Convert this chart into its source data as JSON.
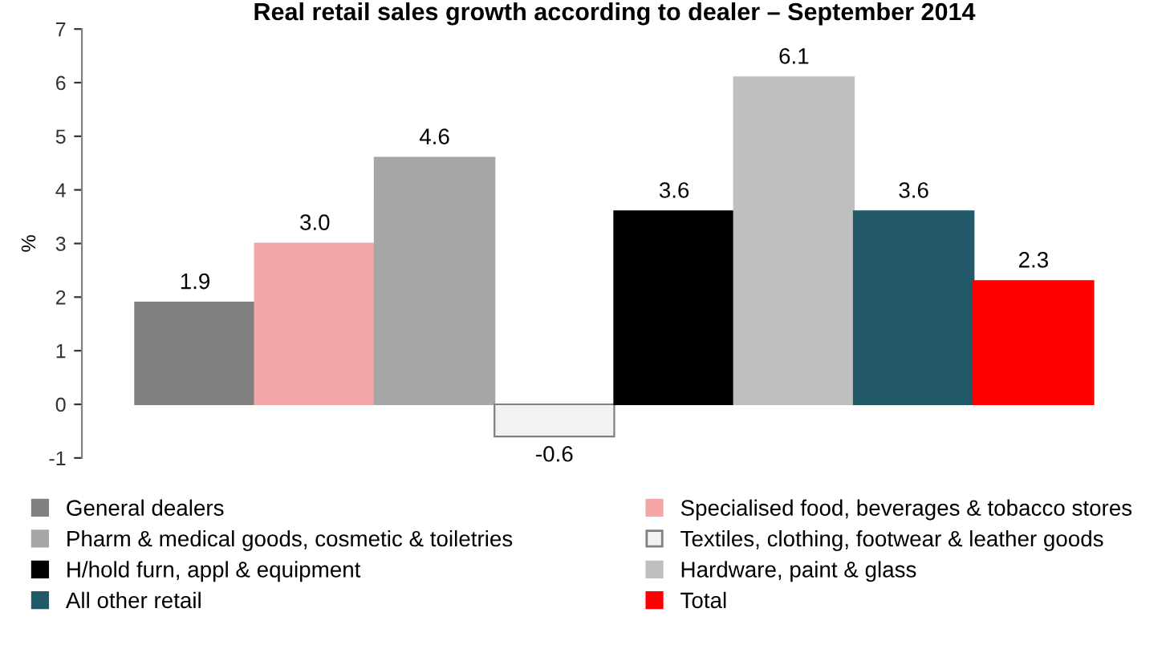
{
  "chart_data": {
    "type": "bar",
    "title": "Real retail sales growth according to dealer – September 2014",
    "ylabel": "%",
    "categories": [
      null
    ],
    "series": [
      {
        "name": "General dealers",
        "color": "#808080",
        "values": [
          1.9
        ]
      },
      {
        "name": "Specialised food, beverages & tobacco stores",
        "color": "#f4a6a6",
        "values": [
          3.0
        ],
        "value_labels": [
          "3.0"
        ]
      },
      {
        "name": "Pharm & medical goods, cosmetic & toiletries",
        "color": "#a6a6a6",
        "values": [
          4.6
        ]
      },
      {
        "name": "Textiles, clothing, footwear & leather goods",
        "color": "#f2f2f2",
        "values": [
          -0.6
        ]
      },
      {
        "name": "H/hold furn, appl & equipment",
        "color": "#000000",
        "values": [
          3.6
        ]
      },
      {
        "name": "Hardware, paint & glass",
        "color": "#bfbfbf",
        "values": [
          6.1
        ]
      },
      {
        "name": "All other retail",
        "color": "#215968",
        "values": [
          3.6
        ]
      },
      {
        "name": "Total",
        "color": "#ff0000",
        "values": [
          2.3
        ]
      }
    ],
    "ylim": [
      -1,
      7
    ],
    "yticks": [
      -1,
      0,
      1,
      2,
      3,
      4,
      5,
      6,
      7
    ],
    "data_labels": true,
    "legend": "bottom",
    "grid": false
  }
}
